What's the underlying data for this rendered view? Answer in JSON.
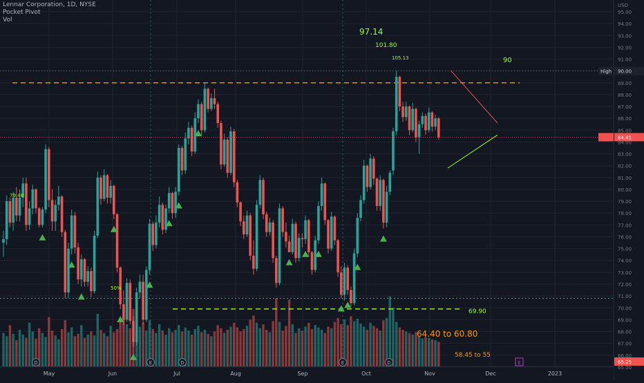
{
  "header": {
    "symbol_line": "Lennar Corporation, 1D, NYSE",
    "indicator_1": "Pocket Pivot",
    "indicator_2": "Vol"
  },
  "axis": {
    "currency": "USD",
    "y_ticks": [
      "95.00",
      "94.00",
      "93.00",
      "92.00",
      "91.00",
      "90.00",
      "89.00",
      "88.00",
      "87.00",
      "86.00",
      "85.00",
      "84.00",
      "83.00",
      "82.00",
      "81.00",
      "80.00",
      "79.00",
      "78.00",
      "77.00",
      "76.00",
      "75.00",
      "74.00",
      "73.00",
      "72.00",
      "71.00",
      "70.00",
      "69.00",
      "68.00",
      "67.00",
      "66.00",
      "65.00"
    ],
    "x_ticks": [
      "May",
      "Jun",
      "Jul",
      "Aug",
      "Sep",
      "Oct",
      "Nov",
      "Dec",
      "2023"
    ],
    "high_label": "High",
    "high_value": "90.00",
    "last_price": "84.41",
    "bottom_price": "65.25"
  },
  "annotations": {
    "t1": "97.14",
    "t2": "101.80",
    "t3": "105.13",
    "t4": "90",
    "support": "69.90",
    "range1": "64.40 to 60.80",
    "range2": "58.45 to 55",
    "left_label": "79.48",
    "pct_label": "50%"
  },
  "colors": {
    "up": "#26a69a",
    "down": "#ef5350",
    "background": "#131722",
    "grid": "#1f2430",
    "annotation": "#9bff29",
    "resistance": "#ff9800",
    "signal": "#4caf50"
  },
  "chart_data": {
    "type": "candlestick",
    "title": "Lennar Corporation, 1D, NYSE",
    "ylim": [
      65,
      95.5
    ],
    "resistance_level": 89.0,
    "support_level": 69.9,
    "dotted_level": 70.8,
    "high_level": 90.0,
    "candles": [
      [
        75.5,
        76.5,
        74.3,
        75.8
      ],
      [
        75.8,
        79.5,
        75.3,
        79.0
      ],
      [
        79.0,
        79.3,
        76.8,
        77.2
      ],
      [
        77.2,
        79.8,
        76.5,
        79.3
      ],
      [
        79.3,
        80.2,
        77.3,
        77.8
      ],
      [
        77.8,
        80.0,
        77.3,
        79.3
      ],
      [
        79.3,
        81.0,
        78.5,
        80.5
      ],
      [
        80.5,
        81.0,
        76.5,
        77.0
      ],
      [
        77.0,
        79.0,
        76.6,
        78.4
      ],
      [
        78.4,
        80.4,
        77.9,
        80.0
      ],
      [
        80.0,
        80.1,
        78.0,
        78.4
      ],
      [
        78.4,
        78.5,
        76.8,
        77.0
      ],
      [
        77.0,
        78.5,
        76.8,
        78.3
      ],
      [
        78.3,
        83.8,
        78.0,
        83.4
      ],
      [
        83.4,
        83.6,
        78.5,
        79.1
      ],
      [
        79.1,
        80.0,
        76.5,
        77.3
      ],
      [
        77.3,
        79.1,
        76.5,
        78.7
      ],
      [
        78.7,
        80.3,
        78.2,
        79.4
      ],
      [
        79.4,
        79.5,
        76.0,
        76.4
      ],
      [
        76.4,
        76.6,
        70.8,
        71.3
      ],
      [
        71.3,
        75.5,
        70.8,
        75.0
      ],
      [
        75.0,
        78.3,
        74.5,
        77.8
      ],
      [
        77.8,
        78.1,
        74.6,
        75.1
      ],
      [
        75.1,
        75.5,
        72.0,
        72.4
      ],
      [
        72.4,
        74.5,
        71.8,
        74.1
      ],
      [
        74.1,
        74.2,
        71.8,
        72.2
      ],
      [
        72.2,
        73.5,
        71.8,
        73.1
      ],
      [
        73.1,
        73.4,
        70.9,
        71.4
      ],
      [
        71.4,
        76.5,
        71.2,
        76.1
      ],
      [
        76.1,
        81.5,
        75.9,
        81.0
      ],
      [
        81.0,
        81.2,
        78.7,
        79.2
      ],
      [
        79.2,
        81.7,
        79.0,
        81.2
      ],
      [
        81.2,
        81.3,
        78.8,
        79.3
      ],
      [
        79.3,
        80.8,
        78.8,
        80.3
      ],
      [
        80.3,
        80.4,
        77.5,
        77.9
      ],
      [
        77.9,
        78.0,
        73.0,
        73.4
      ],
      [
        73.4,
        73.5,
        69.9,
        70.3
      ],
      [
        70.3,
        71.5,
        68.5,
        69.0
      ],
      [
        69.0,
        72.5,
        68.8,
        72.1
      ],
      [
        72.1,
        72.4,
        68.6,
        68.9
      ],
      [
        68.9,
        69.3,
        66.7,
        67.1
      ],
      [
        67.1,
        71.7,
        66.8,
        71.3
      ],
      [
        71.3,
        72.8,
        70.8,
        72.2
      ],
      [
        72.2,
        72.8,
        68.6,
        69.0
      ],
      [
        69.0,
        73.5,
        68.8,
        73.2
      ],
      [
        73.2,
        77.5,
        72.8,
        77.1
      ],
      [
        77.1,
        77.3,
        74.8,
        75.3
      ],
      [
        75.3,
        77.8,
        75.0,
        77.2
      ],
      [
        77.2,
        79.4,
        76.8,
        78.7
      ],
      [
        78.7,
        78.9,
        76.2,
        76.6
      ],
      [
        76.6,
        78.7,
        76.3,
        78.4
      ],
      [
        78.4,
        80.2,
        78.0,
        79.7
      ],
      [
        79.7,
        79.8,
        77.5,
        78.0
      ],
      [
        78.0,
        80.2,
        77.6,
        79.8
      ],
      [
        79.8,
        83.8,
        79.5,
        83.5
      ],
      [
        83.5,
        83.7,
        81.2,
        81.6
      ],
      [
        81.6,
        84.8,
        81.3,
        84.3
      ],
      [
        84.3,
        85.7,
        83.8,
        85.2
      ],
      [
        85.2,
        85.4,
        82.8,
        83.2
      ],
      [
        83.2,
        86.5,
        83.0,
        86.0
      ],
      [
        86.0,
        87.6,
        85.6,
        87.2
      ],
      [
        87.2,
        87.4,
        84.5,
        85.0
      ],
      [
        85.0,
        89.0,
        84.8,
        88.5
      ],
      [
        88.5,
        88.6,
        86.5,
        86.8
      ],
      [
        86.8,
        88.1,
        86.6,
        87.7
      ],
      [
        87.7,
        88.5,
        86.8,
        87.2
      ],
      [
        87.2,
        87.4,
        85.2,
        85.6
      ],
      [
        85.6,
        85.8,
        81.7,
        82.1
      ],
      [
        82.1,
        84.7,
        81.9,
        84.2
      ],
      [
        84.2,
        84.4,
        81.0,
        81.4
      ],
      [
        81.4,
        85.3,
        81.2,
        84.9
      ],
      [
        84.9,
        85.1,
        80.2,
        80.6
      ],
      [
        80.6,
        80.8,
        78.5,
        78.9
      ],
      [
        78.9,
        79.0,
        76.9,
        77.3
      ],
      [
        77.3,
        77.8,
        75.8,
        76.2
      ],
      [
        76.2,
        78.2,
        76.0,
        77.8
      ],
      [
        77.8,
        78.0,
        74.0,
        74.4
      ],
      [
        74.4,
        75.7,
        72.8,
        73.3
      ],
      [
        73.3,
        79.1,
        73.1,
        78.7
      ],
      [
        78.7,
        81.2,
        78.4,
        80.8
      ],
      [
        80.8,
        81.0,
        77.5,
        77.9
      ],
      [
        77.9,
        78.1,
        76.0,
        76.4
      ],
      [
        76.4,
        77.6,
        76.1,
        77.2
      ],
      [
        77.2,
        77.4,
        73.8,
        74.2
      ],
      [
        74.2,
        74.4,
        71.7,
        72.1
      ],
      [
        72.1,
        78.8,
        71.9,
        78.4
      ],
      [
        78.4,
        78.6,
        76.0,
        76.4
      ],
      [
        76.4,
        77.2,
        75.1,
        75.6
      ],
      [
        75.6,
        76.1,
        74.7,
        74.7
      ],
      [
        74.7,
        77.5,
        74.5,
        77.1
      ],
      [
        77.1,
        77.3,
        73.8,
        74.2
      ],
      [
        74.2,
        76.3,
        73.9,
        75.9
      ],
      [
        75.9,
        76.3,
        75.1,
        75.8
      ],
      [
        75.8,
        77.8,
        75.4,
        77.4
      ],
      [
        77.4,
        77.5,
        74.3,
        74.7
      ],
      [
        74.7,
        74.8,
        72.8,
        73.2
      ],
      [
        73.2,
        76.1,
        73.0,
        75.7
      ],
      [
        75.7,
        79.0,
        75.4,
        78.6
      ],
      [
        78.6,
        81.0,
        78.2,
        80.5
      ],
      [
        80.5,
        80.6,
        77.0,
        77.4
      ],
      [
        77.4,
        77.5,
        74.6,
        75.0
      ],
      [
        75.0,
        78.1,
        74.8,
        77.7
      ],
      [
        77.7,
        77.8,
        75.3,
        75.7
      ],
      [
        75.7,
        75.8,
        72.6,
        73.0
      ],
      [
        73.0,
        73.5,
        70.8,
        71.1
      ],
      [
        71.1,
        73.8,
        70.6,
        73.4
      ],
      [
        73.4,
        73.6,
        71.1,
        71.5
      ],
      [
        71.5,
        71.8,
        70.1,
        70.4
      ],
      [
        70.4,
        75.0,
        70.2,
        74.6
      ],
      [
        74.6,
        78.0,
        74.3,
        77.6
      ],
      [
        77.6,
        79.5,
        77.3,
        79.1
      ],
      [
        79.1,
        82.5,
        78.8,
        82.0
      ],
      [
        82.0,
        82.1,
        79.8,
        80.2
      ],
      [
        80.2,
        83.0,
        80.0,
        82.6
      ],
      [
        82.6,
        82.8,
        80.4,
        80.9
      ],
      [
        80.9,
        81.0,
        78.2,
        78.6
      ],
      [
        78.6,
        81.2,
        78.2,
        80.8
      ],
      [
        80.8,
        80.9,
        76.7,
        77.2
      ],
      [
        77.2,
        80.3,
        76.8,
        79.8
      ],
      [
        79.8,
        81.6,
        79.5,
        81.4
      ],
      [
        81.6,
        85.2,
        81.2,
        84.9
      ],
      [
        84.9,
        90.0,
        84.6,
        89.5
      ],
      [
        89.5,
        89.6,
        86.6,
        87.0
      ],
      [
        87.0,
        87.4,
        85.7,
        86.1
      ],
      [
        86.1,
        87.4,
        85.8,
        87.0
      ],
      [
        87.0,
        87.1,
        84.6,
        85.0
      ],
      [
        85.0,
        87.3,
        84.8,
        86.8
      ],
      [
        86.8,
        86.9,
        84.0,
        84.4
      ],
      [
        84.4,
        85.8,
        83.0,
        85.5
      ],
      [
        85.5,
        86.5,
        85.2,
        86.2
      ],
      [
        86.2,
        86.4,
        84.6,
        85.0
      ],
      [
        85.0,
        86.9,
        84.8,
        86.5
      ],
      [
        86.5,
        86.6,
        84.9,
        85.3
      ],
      [
        85.3,
        86.3,
        85.0,
        86.0
      ],
      [
        86.0,
        86.1,
        84.2,
        84.4
      ]
    ],
    "volumes": [
      0.42,
      0.38,
      0.52,
      0.41,
      0.33,
      0.46,
      0.4,
      0.36,
      0.55,
      0.44,
      0.35,
      0.48,
      0.42,
      0.37,
      0.62,
      0.45,
      0.39,
      0.34,
      0.47,
      0.58,
      0.43,
      0.49,
      0.38,
      0.41,
      0.52,
      0.36,
      0.4,
      0.44,
      0.39,
      0.66,
      0.46,
      0.42,
      0.38,
      0.51,
      0.43,
      0.47,
      0.57,
      0.61,
      0.53,
      0.48,
      0.72,
      0.63,
      0.5,
      0.55,
      0.45,
      0.58,
      0.47,
      0.42,
      0.53,
      0.45,
      0.4,
      0.48,
      0.43,
      0.46,
      0.52,
      0.44,
      0.49,
      0.45,
      0.4,
      0.47,
      0.51,
      0.43,
      0.46,
      0.41,
      0.38,
      0.44,
      0.52,
      0.48,
      0.42,
      0.46,
      0.5,
      0.55,
      0.49,
      0.44,
      0.47,
      0.51,
      0.59,
      0.64,
      0.55,
      0.48,
      0.53,
      0.46,
      0.43,
      0.57,
      0.86,
      0.56,
      0.45,
      0.51,
      0.84,
      0.53,
      0.42,
      0.48,
      0.45,
      0.5,
      0.55,
      0.47,
      0.52,
      0.49,
      0.46,
      0.42,
      0.5,
      0.48,
      0.56,
      0.61,
      0.53,
      0.59,
      0.52,
      0.63,
      0.57,
      0.6,
      0.54,
      0.5,
      0.46,
      0.55,
      0.51,
      0.48,
      0.45,
      0.58,
      0.61,
      0.88,
      0.74,
      0.56,
      0.49,
      0.46,
      0.44,
      0.42,
      0.4,
      0.43,
      0.38,
      0.35,
      0.37,
      0.36,
      0.34,
      0.33,
      0.31
    ],
    "pivot_signals": [
      12,
      21,
      24,
      34,
      36,
      40,
      45,
      51,
      54,
      60,
      88,
      93,
      97,
      104,
      106,
      109,
      117
    ]
  }
}
